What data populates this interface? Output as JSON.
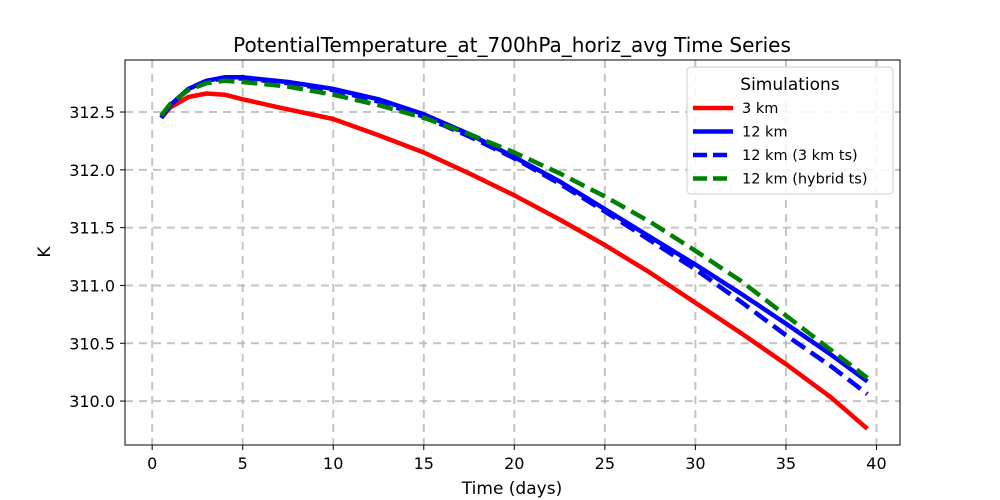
{
  "chart_data": {
    "type": "line",
    "title": "PotentialTemperature_at_700hPa_horiz_avg Time Series",
    "xlabel": "Time (days)",
    "ylabel": "K",
    "xlim": [
      -1.5,
      41.3
    ],
    "ylim": [
      309.62,
      312.95
    ],
    "xticks": [
      0,
      5,
      10,
      15,
      20,
      25,
      30,
      35,
      40
    ],
    "yticks": [
      310.0,
      310.5,
      311.0,
      311.5,
      312.0,
      312.5
    ],
    "xtick_labels": [
      "0",
      "5",
      "10",
      "15",
      "20",
      "25",
      "30",
      "35",
      "40"
    ],
    "ytick_labels": [
      "310.0",
      "310.5",
      "311.0",
      "311.5",
      "312.0",
      "312.5"
    ],
    "grid": true,
    "legend": {
      "title": "Simulations",
      "position": "top-right"
    },
    "series": [
      {
        "name": "3 km",
        "color": "#ff0000",
        "dash": "solid",
        "x": [
          0.5,
          1,
          2,
          3,
          4,
          5,
          7,
          10,
          12.5,
          15,
          17.5,
          20,
          22.5,
          25,
          27.5,
          30,
          32.5,
          35,
          37.5,
          39.5
        ],
        "y": [
          312.45,
          312.54,
          312.63,
          312.66,
          312.65,
          312.61,
          312.54,
          312.44,
          312.3,
          312.15,
          311.97,
          311.78,
          311.57,
          311.35,
          311.11,
          310.85,
          310.59,
          310.32,
          310.03,
          309.76
        ]
      },
      {
        "name": "12 km",
        "color": "#0000ff",
        "dash": "solid",
        "x": [
          0.5,
          1,
          2,
          3,
          4,
          5,
          7.5,
          10,
          12.5,
          15,
          17.5,
          20,
          22.5,
          25,
          27.5,
          30,
          32.5,
          35,
          37.5,
          39.5
        ],
        "y": [
          312.45,
          312.56,
          312.7,
          312.77,
          312.8,
          312.8,
          312.76,
          312.7,
          312.61,
          312.48,
          312.31,
          312.11,
          311.9,
          311.66,
          311.42,
          311.18,
          310.93,
          310.67,
          310.4,
          310.17
        ]
      },
      {
        "name": "12 km (3 km ts)",
        "color": "#0000ff",
        "dash": "dashed",
        "x": [
          0.5,
          1,
          2,
          3,
          4,
          5,
          7.5,
          10,
          12.5,
          15,
          17.5,
          20,
          22.5,
          25,
          27.5,
          30,
          32.5,
          35,
          37.5,
          39.5
        ],
        "y": [
          312.45,
          312.56,
          312.7,
          312.77,
          312.79,
          312.79,
          312.75,
          312.69,
          312.59,
          312.46,
          312.29,
          312.1,
          311.88,
          311.64,
          311.39,
          311.14,
          310.86,
          310.57,
          310.3,
          310.06
        ]
      },
      {
        "name": "12 km (hybrid ts)",
        "color": "#008000",
        "dash": "dashed",
        "x": [
          0.5,
          1,
          2,
          3,
          4,
          5,
          7.5,
          10,
          12.5,
          15,
          17.5,
          20,
          22.5,
          25,
          27.5,
          30,
          32.5,
          35,
          37.5,
          39.5
        ],
        "y": [
          312.47,
          312.57,
          312.69,
          312.75,
          312.77,
          312.76,
          312.72,
          312.65,
          312.56,
          312.45,
          312.31,
          312.15,
          311.97,
          311.77,
          311.55,
          311.3,
          311.04,
          310.74,
          310.44,
          310.2
        ]
      }
    ]
  }
}
